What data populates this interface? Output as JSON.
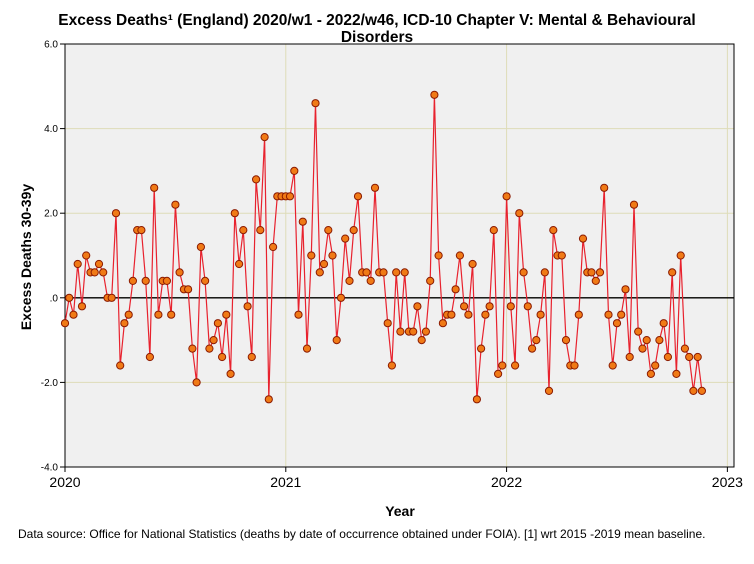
{
  "chart_data": {
    "type": "line",
    "title_line1": "Excess Deaths¹ (England) 2020/w1 - 2022/w46, ICD-10 Chapter V: Mental & Behavioural",
    "title_line2": "Disorders",
    "xlabel": "Year",
    "ylabel": "Excess Deaths 30-39y",
    "x_range": [
      2020.0,
      2023.03
    ],
    "ylim": [
      -4.0,
      6.0
    ],
    "x_ticks": [
      2020,
      2021,
      2022,
      2023
    ],
    "x_tick_labels": [
      "2020",
      "2021",
      "2022",
      "2023"
    ],
    "y_ticks": [
      -4.0,
      -2.0,
      0.0,
      2.0,
      4.0,
      6.0
    ],
    "y_tick_labels": [
      "-4.0",
      "-2.0",
      ".0",
      "2.0",
      "4.0",
      "6.0"
    ],
    "grid": true,
    "reference_line_y": 0,
    "line_color": "#e8222e",
    "marker_fill": "#f07a16",
    "marker_edge": "#8b1a00",
    "plot_background": "#f0f0f0",
    "grid_color": "#dedcb8",
    "series": [
      {
        "name": "Excess Deaths 30-39y",
        "x_start_year": 2020,
        "weeks_per_year": 52,
        "values": [
          -0.6,
          0.0,
          -0.4,
          0.8,
          -0.2,
          1.0,
          0.6,
          0.6,
          0.8,
          0.6,
          0.0,
          0.0,
          2.0,
          -1.6,
          -0.6,
          -0.4,
          0.4,
          1.6,
          1.6,
          0.4,
          -1.4,
          2.6,
          -0.4,
          0.4,
          0.4,
          -0.4,
          2.2,
          0.6,
          0.2,
          0.2,
          -1.2,
          -2.0,
          1.2,
          0.4,
          -1.2,
          -1.0,
          -0.6,
          -1.4,
          -0.4,
          -1.8,
          2.0,
          0.8,
          1.6,
          -0.2,
          -1.4,
          2.8,
          1.6,
          3.8,
          -2.4,
          1.2,
          2.4,
          2.4,
          2.4,
          2.4,
          3.0,
          -0.4,
          1.8,
          -1.2,
          1.0,
          4.6,
          0.6,
          0.8,
          1.6,
          1.0,
          -1.0,
          0.0,
          1.4,
          0.4,
          1.6,
          2.4,
          0.6,
          0.6,
          0.4,
          2.6,
          0.6,
          0.6,
          -0.6,
          -1.6,
          0.6,
          -0.8,
          0.6,
          -0.8,
          -0.8,
          -0.2,
          -1.0,
          -0.8,
          0.4,
          4.8,
          1.0,
          -0.6,
          -0.4,
          -0.4,
          0.2,
          1.0,
          -0.2,
          -0.4,
          0.8,
          -2.4,
          -1.2,
          -0.4,
          -0.2,
          1.6,
          -1.8,
          -1.6,
          2.4,
          -0.2,
          -1.6,
          2.0,
          0.6,
          -0.2,
          -1.2,
          -1.0,
          -0.4,
          0.6,
          -2.2,
          1.6,
          1.0,
          1.0,
          -1.0,
          -1.6,
          -1.6,
          -0.4,
          1.4,
          0.6,
          0.6,
          0.4,
          0.6,
          2.6,
          -0.4,
          -1.6,
          -0.6,
          -0.4,
          0.2,
          -1.4,
          2.2,
          -0.8,
          -1.2,
          -1.0,
          -1.8,
          -1.6,
          -1.0,
          -0.6,
          -1.4,
          0.6,
          -1.8,
          1.0,
          -1.2,
          -1.4,
          -2.2,
          -1.4,
          -2.2
        ]
      }
    ]
  },
  "footnote": "Data source: Office for National Statistics (deaths by date of occurrence obtained under FOIA). [1] wrt 2015 -2019 mean baseline."
}
